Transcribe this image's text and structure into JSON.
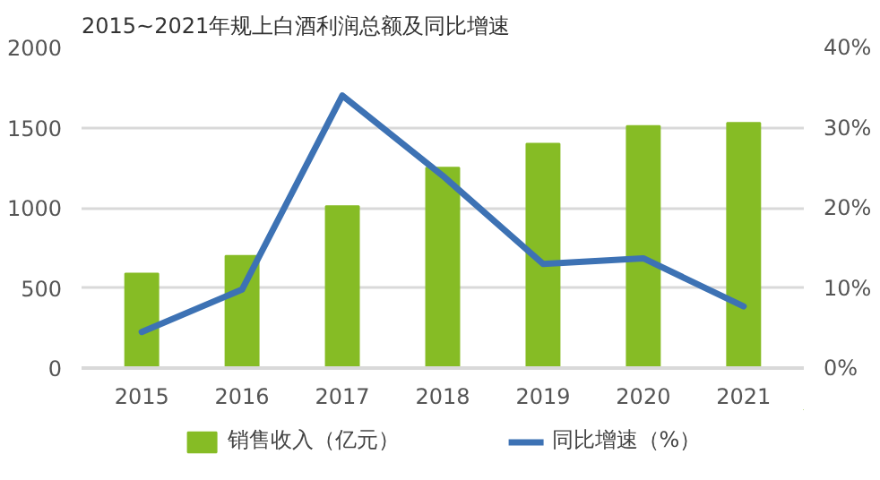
{
  "chart_data": {
    "type": "bar",
    "title": "2015~2021年规上白酒利润总额及同比增速",
    "categories": [
      "2015",
      "2016",
      "2017",
      "2018",
      "2019",
      "2020",
      "2021"
    ],
    "series": [
      {
        "name": "销售收入（亿元）",
        "color": "#86bc25",
        "values": [
          590,
          700,
          1010,
          1250,
          1400,
          1510,
          1530
        ]
      },
      {
        "name": "同比增速（%）",
        "color": "#3d72b4",
        "type": "line",
        "axis": "y2",
        "values": [
          4.5,
          9.8,
          34,
          24,
          13,
          13.7,
          7.7
        ]
      }
    ],
    "ylim": [
      0,
      2000
    ],
    "yticks": [
      0,
      500,
      1000,
      1500,
      2000
    ],
    "y2lim": [
      0,
      40
    ],
    "y2ticks": [
      {
        "value": 0,
        "label": "0%"
      },
      {
        "value": 10,
        "label": "10%"
      },
      {
        "value": 20,
        "label": "20%"
      },
      {
        "value": 30,
        "label": "30%"
      },
      {
        "value": 40,
        "label": "40%"
      }
    ],
    "grid": "y",
    "legend": "bottom"
  }
}
